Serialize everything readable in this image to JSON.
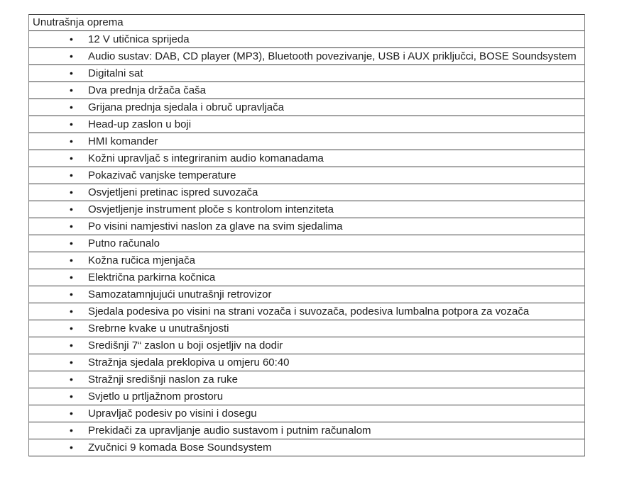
{
  "colors": {
    "text": "#212121",
    "border_h": "#3d3d3d",
    "border_v": "#7f7f7f",
    "page_bg": "#ffffff"
  },
  "table": {
    "title": "Unutrašnja oprema",
    "bullet_glyph": "•",
    "items": [
      "12 V utičnica sprijeda",
      "Audio sustav: DAB, CD player (MP3), Bluetooth povezivanje, USB i AUX priključci, BOSE Soundsystem",
      "Digitalni sat",
      "Dva prednja držača čaša",
      "Grijana prednja sjedala i obruč upravljača",
      "Head-up zaslon u boji",
      "HMI komander",
      "Kožni upravljač s integriranim audio komanadama",
      "Pokazivač vanjske temperature",
      "Osvjetljeni pretinac ispred suvozača",
      "Osvjetljenje instrument ploče s kontrolom intenziteta",
      "Po visini namjestivi naslon za glave na svim sjedalima",
      "Putno računalo",
      "Kožna ručica mjenjača",
      "Električna parkirna kočnica",
      "Samozatamnjujući unutrašnji retrovizor",
      "Sjedala podesiva po visini na strani vozača i suvozača, podesiva lumbalna potpora za vozača",
      "Srebrne kvake u unutrašnjosti",
      "Središnji 7“ zaslon u boji osjetljiv na dodir",
      "Stražnja sjedala preklopiva u omjeru 60:40",
      "Stražnji središnji naslon za ruke",
      "Svjetlo u prtljažnom prostoru",
      "Upravljač podesiv po visini i dosegu",
      "Prekidači za upravljanje audio sustavom i putnim računalom",
      "Zvučnici 9 komada Bose Soundsystem"
    ]
  }
}
